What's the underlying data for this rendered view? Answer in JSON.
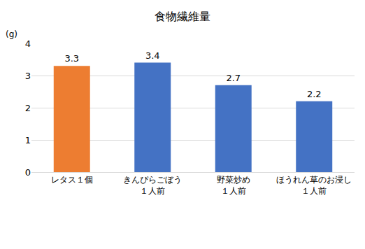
{
  "chart_data": {
    "type": "bar",
    "title": "食物繊維量",
    "ylabel": "(g)",
    "categories": [
      "レタス１個",
      "きんぴらごぼう\n１人前",
      "野菜炒め\n１人前",
      "ほうれん草のお浸し\n１人前"
    ],
    "values": [
      3.3,
      3.4,
      2.7,
      2.2
    ],
    "colors": [
      "#ed7d31",
      "#4472c4",
      "#4472c4",
      "#4472c4"
    ],
    "ylim": [
      0,
      4
    ],
    "yticks": [
      0,
      1,
      2,
      3,
      4
    ],
    "grid": true,
    "data_labels": true
  }
}
